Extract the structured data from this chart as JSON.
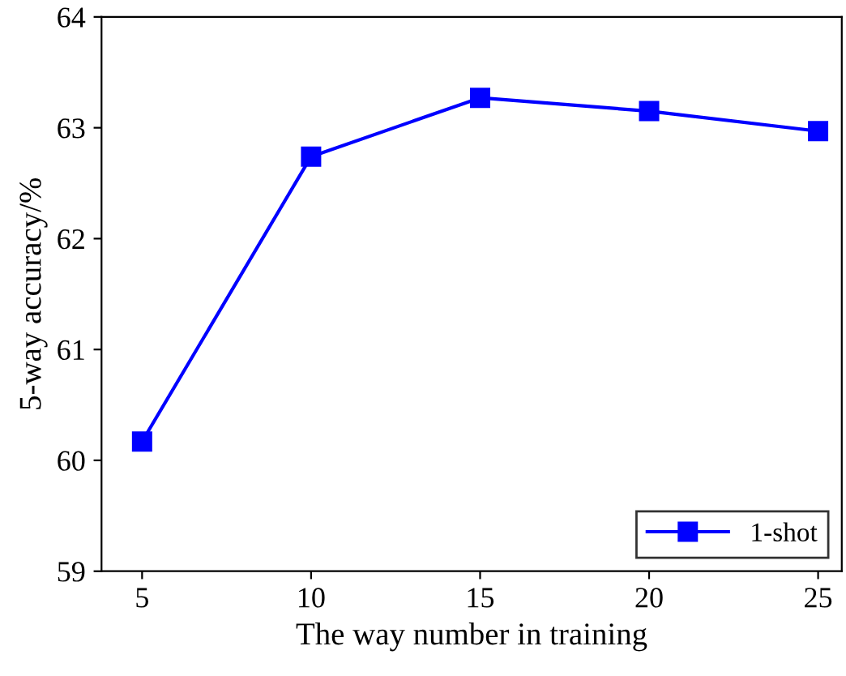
{
  "chart_data": {
    "type": "line",
    "xlabel": "The way number in training",
    "ylabel": "5-way accuracy/%",
    "x": [
      5,
      10,
      15,
      20,
      25
    ],
    "series": [
      {
        "name": "1-shot",
        "color": "#0000ff",
        "values": [
          60.17,
          62.74,
          63.27,
          63.15,
          62.97
        ]
      }
    ],
    "xlim": [
      3.8,
      25.7
    ],
    "xticks": [
      5,
      10,
      15,
      20,
      25
    ],
    "ylim": [
      59,
      64
    ],
    "yticks": [
      59,
      60,
      61,
      62,
      63,
      64
    ],
    "marker": "square",
    "line_style": "solid",
    "legend": "bottom right",
    "grid": false
  }
}
